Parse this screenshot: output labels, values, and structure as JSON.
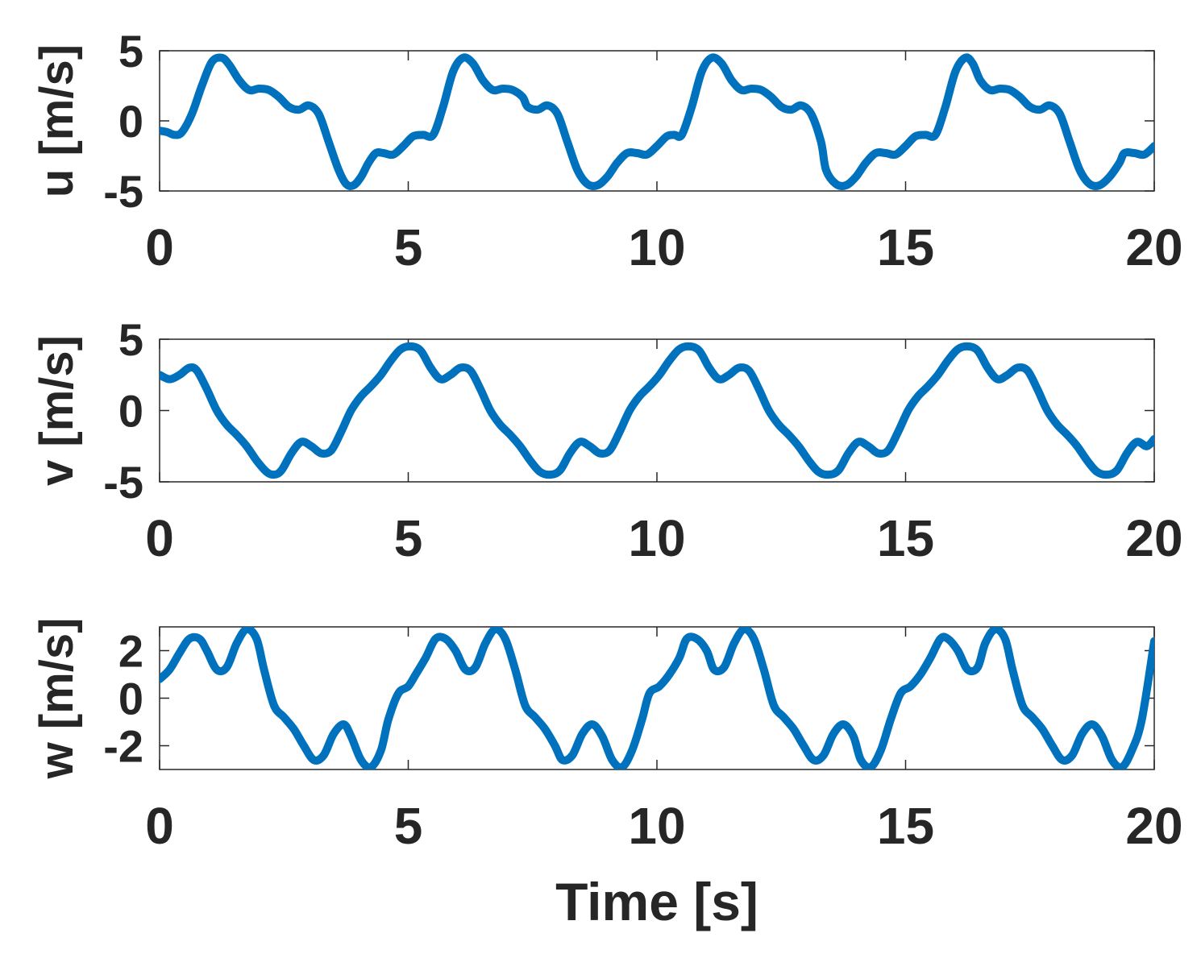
{
  "chart_data": [
    {
      "type": "line",
      "ylabel": "u [m/s]",
      "xlabel": "",
      "xlim": [
        0,
        20
      ],
      "ylim": [
        -5,
        5
      ],
      "xticks": [
        0,
        5,
        10,
        15,
        20
      ],
      "yticks": [
        -5,
        0,
        5
      ],
      "grid": false,
      "color": "#0072BD",
      "series": [
        {
          "x": [
            0,
            0.15,
            0.3,
            0.45,
            0.65,
            0.85,
            1.05,
            1.25,
            1.4,
            1.6,
            1.8,
            2.0,
            2.2,
            2.4,
            2.6,
            2.8,
            3.0,
            3.2,
            3.4,
            3.6,
            3.75,
            3.9,
            4.05,
            4.2,
            4.35,
            4.5,
            4.7,
            4.9,
            5.1,
            5.3,
            5.5,
            5.7,
            5.9,
            6.1,
            6.3,
            6.5,
            6.7,
            6.9,
            7.1,
            7.3,
            7.4,
            7.6,
            7.8,
            8.0,
            8.2,
            8.4,
            8.6,
            8.8,
            9.0,
            9.2,
            9.4,
            9.6,
            9.8,
            10.0,
            10.2,
            10.35,
            10.5,
            10.7,
            10.9,
            11.1,
            11.3,
            11.5,
            11.7,
            11.9,
            12.1,
            12.3,
            12.5,
            12.7,
            12.9,
            13.1,
            13.3,
            13.4,
            13.6,
            13.8,
            14.0,
            14.2,
            14.4,
            14.6,
            14.8,
            15.0,
            15.2,
            15.4,
            15.6,
            15.8,
            16.0,
            16.2,
            16.35,
            16.5,
            16.7,
            16.9,
            17.1,
            17.3,
            17.5,
            17.7,
            17.9,
            18.1,
            18.3,
            18.5,
            18.7,
            18.9,
            19.1,
            19.3,
            19.4,
            19.6,
            19.8,
            20.0
          ],
          "y": [
            -0.7,
            -0.8,
            -1.0,
            -0.8,
            0.5,
            2.5,
            4.2,
            4.5,
            4.0,
            2.9,
            2.2,
            2.3,
            2.2,
            1.7,
            1.0,
            0.8,
            1.1,
            0.5,
            -1.5,
            -3.5,
            -4.5,
            -4.6,
            -4.0,
            -3.0,
            -2.3,
            -2.3,
            -2.4,
            -1.8,
            -1.1,
            -1.0,
            -1.0,
            1.0,
            3.5,
            4.5,
            4.1,
            2.9,
            2.2,
            2.3,
            2.2,
            1.7,
            1.0,
            0.8,
            1.1,
            0.5,
            -1.5,
            -3.5,
            -4.5,
            -4.6,
            -4.0,
            -3.0,
            -2.3,
            -2.3,
            -2.4,
            -1.8,
            -1.1,
            -1.0,
            -1.0,
            1.0,
            3.5,
            4.5,
            4.1,
            2.9,
            2.2,
            2.3,
            2.2,
            1.7,
            1.0,
            0.8,
            1.1,
            0.5,
            -1.5,
            -3.5,
            -4.5,
            -4.6,
            -4.0,
            -3.0,
            -2.3,
            -2.3,
            -2.4,
            -1.8,
            -1.1,
            -1.0,
            -1.0,
            1.0,
            3.5,
            4.5,
            4.1,
            2.9,
            2.2,
            2.3,
            2.2,
            1.7,
            1.0,
            0.8,
            1.1,
            0.5,
            -1.5,
            -3.5,
            -4.5,
            -4.6,
            -4.0,
            -3.0,
            -2.3,
            -2.3,
            -2.4,
            -1.8
          ]
        }
      ]
    },
    {
      "type": "line",
      "ylabel": "v [m/s]",
      "xlabel": "",
      "xlim": [
        0,
        20
      ],
      "ylim": [
        -5,
        5
      ],
      "xticks": [
        0,
        5,
        10,
        15,
        20
      ],
      "yticks": [
        -5,
        0,
        5
      ],
      "grid": false,
      "color": "#0072BD",
      "series": [
        {
          "x": [
            0,
            0.2,
            0.4,
            0.6,
            0.75,
            0.95,
            1.15,
            1.35,
            1.55,
            1.75,
            1.95,
            2.15,
            2.3,
            2.45,
            2.65,
            2.85,
            3.05,
            3.25,
            3.45,
            3.65,
            3.85,
            4.05,
            4.25,
            4.45,
            4.65,
            4.85,
            5.05,
            5.25,
            5.45,
            5.65,
            5.85,
            6.05,
            6.25,
            6.45,
            6.65,
            6.85,
            7.05,
            7.25,
            7.45,
            7.65,
            7.85,
            8.05,
            8.25,
            8.45,
            8.65,
            8.85,
            9.05,
            9.25,
            9.45,
            9.65,
            9.85,
            10.05,
            10.25,
            10.45,
            10.65,
            10.85,
            11.05,
            11.25,
            11.45,
            11.65,
            11.85,
            12.05,
            12.25,
            12.45,
            12.65,
            12.85,
            13.05,
            13.25,
            13.45,
            13.65,
            13.85,
            14.05,
            14.25,
            14.45,
            14.65,
            14.85,
            15.05,
            15.25,
            15.45,
            15.65,
            15.85,
            16.05,
            16.25,
            16.45,
            16.65,
            16.85,
            17.05,
            17.25,
            17.45,
            17.65,
            17.85,
            18.05,
            18.25,
            18.45,
            18.65,
            18.85,
            19.05,
            19.25,
            19.45,
            19.65,
            19.85,
            20.0
          ],
          "y": [
            2.5,
            2.2,
            2.5,
            3.0,
            2.8,
            1.5,
            0.0,
            -1.0,
            -1.7,
            -2.5,
            -3.5,
            -4.3,
            -4.5,
            -4.2,
            -3.0,
            -2.2,
            -2.5,
            -3.0,
            -2.8,
            -1.5,
            0.0,
            1.0,
            1.7,
            2.5,
            3.5,
            4.3,
            4.5,
            4.2,
            3.0,
            2.2,
            2.5,
            3.0,
            2.8,
            1.5,
            0.0,
            -1.0,
            -1.7,
            -2.5,
            -3.5,
            -4.3,
            -4.5,
            -4.2,
            -3.0,
            -2.2,
            -2.5,
            -3.0,
            -2.8,
            -1.5,
            0.0,
            1.0,
            1.7,
            2.5,
            3.5,
            4.3,
            4.5,
            4.2,
            3.0,
            2.2,
            2.5,
            3.0,
            2.8,
            1.5,
            0.0,
            -1.0,
            -1.7,
            -2.5,
            -3.5,
            -4.3,
            -4.5,
            -4.2,
            -3.0,
            -2.2,
            -2.5,
            -3.0,
            -2.8,
            -1.5,
            0.0,
            1.0,
            1.7,
            2.5,
            3.5,
            4.3,
            4.5,
            4.2,
            3.0,
            2.2,
            2.5,
            3.0,
            2.8,
            1.5,
            0.0,
            -1.0,
            -1.7,
            -2.5,
            -3.5,
            -4.3,
            -4.5,
            -4.2,
            -3.0,
            -2.2,
            -2.5,
            -2.0
          ]
        }
      ]
    },
    {
      "type": "line",
      "ylabel": "w [m/s]",
      "xlabel": "Time [s]",
      "xlim": [
        0,
        20
      ],
      "ylim": [
        -3,
        3
      ],
      "xticks": [
        0,
        5,
        10,
        15,
        20
      ],
      "yticks": [
        -2,
        0,
        2
      ],
      "grid": false,
      "color": "#0072BD",
      "series": [
        {
          "x": [
            0,
            0.2,
            0.4,
            0.6,
            0.8,
            0.95,
            1.15,
            1.35,
            1.55,
            1.75,
            1.95,
            2.1,
            2.3,
            2.5,
            2.7,
            2.9,
            3.1,
            3.3,
            3.5,
            3.7,
            3.85,
            4.05,
            4.25,
            4.45,
            4.6,
            4.8,
            5.0,
            5.15,
            5.35,
            5.55,
            5.75,
            5.95,
            6.15,
            6.35,
            6.55,
            6.75,
            6.95,
            7.15,
            7.35,
            7.55,
            7.75,
            7.95,
            8.1,
            8.3,
            8.5,
            8.7,
            8.9,
            9.1,
            9.3,
            9.5,
            9.7,
            9.85,
            10.05,
            10.25,
            10.45,
            10.6,
            10.8,
            11.0,
            11.15,
            11.35,
            11.55,
            11.75,
            11.95,
            12.15,
            12.35,
            12.55,
            12.75,
            12.95,
            13.15,
            13.35,
            13.55,
            13.75,
            13.95,
            14.1,
            14.3,
            14.5,
            14.7,
            14.9,
            15.1,
            15.3,
            15.5,
            15.7,
            15.85,
            16.05,
            16.25,
            16.45,
            16.6,
            16.8,
            17.0,
            17.15,
            17.35,
            17.55,
            17.75,
            17.95,
            18.15,
            18.35,
            18.55,
            18.75,
            18.95,
            19.15,
            19.35,
            19.55,
            19.75,
            20.0
          ],
          "y": [
            0.8,
            1.2,
            1.9,
            2.5,
            2.5,
            2.0,
            1.2,
            1.3,
            2.3,
            2.9,
            2.5,
            1.2,
            -0.3,
            -0.8,
            -1.3,
            -2.0,
            -2.6,
            -2.4,
            -1.5,
            -1.1,
            -1.6,
            -2.6,
            -2.9,
            -2.2,
            -0.9,
            0.2,
            0.5,
            1.0,
            1.7,
            2.5,
            2.5,
            2.0,
            1.2,
            1.3,
            2.3,
            2.9,
            2.5,
            1.2,
            -0.3,
            -0.8,
            -1.3,
            -2.0,
            -2.6,
            -2.4,
            -1.5,
            -1.1,
            -1.6,
            -2.6,
            -2.9,
            -2.2,
            -0.9,
            0.2,
            0.5,
            1.0,
            1.7,
            2.5,
            2.5,
            2.0,
            1.2,
            1.3,
            2.3,
            2.9,
            2.5,
            1.2,
            -0.3,
            -0.8,
            -1.3,
            -2.0,
            -2.6,
            -2.4,
            -1.5,
            -1.1,
            -1.6,
            -2.6,
            -2.9,
            -2.2,
            -0.9,
            0.2,
            0.5,
            1.0,
            1.7,
            2.5,
            2.5,
            2.0,
            1.2,
            1.3,
            2.3,
            2.9,
            2.5,
            1.2,
            -0.3,
            -0.8,
            -1.3,
            -2.0,
            -2.6,
            -2.4,
            -1.5,
            -1.1,
            -1.6,
            -2.6,
            -2.9,
            -2.2,
            -0.9,
            2.4
          ]
        }
      ]
    }
  ]
}
